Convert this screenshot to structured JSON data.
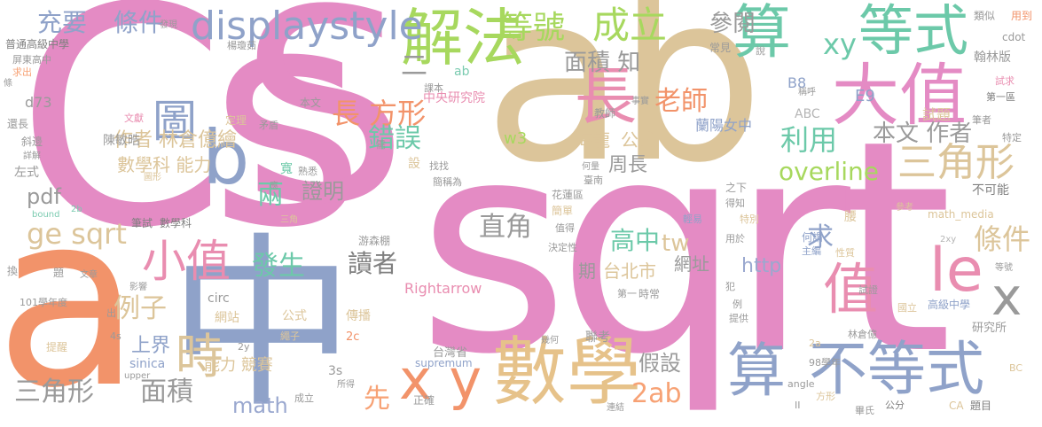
{
  "words": {
    "cs": "Cs",
    "a_big": "a",
    "S_big": "S",
    "ab_big": "ab",
    "sqrt_big": "sqrt",
    "zhong": "中",
    "jiefa": "解法",
    "dengshi": "等號",
    "chengli": "成立",
    "suan1": "算",
    "dengshi2": "等式",
    "displaystyle": "displaystyle",
    "chongyao": "充要",
    "tiaojian": "條件",
    "daizhi": "大值",
    "chang": "長",
    "chang_fangxing": "長 方形",
    "tu": "圖",
    "b": "b",
    "xiaozhi": "小值",
    "shi": "時",
    "xy_big": "x y",
    "shuxue": "數學",
    "suan2": "算",
    "budengshi": "不等式",
    "le": "le",
    "x_small": "x",
    "zhi": "值",
    "sanjiaoxing1": "三角形",
    "sanjiaoxing2": "三角形",
    "mianji": "面積",
    "mianji_zhi": "面積 知",
    "canyue": "參閱",
    "xy_small": "xy",
    "laoshi": "老師",
    "cuowu": "錯誤",
    "liyong": "利用",
    "benwen_zuozhe": "本文 作者",
    "overline": "overline",
    "ge_sqrt": "ge sqrt",
    "pdf": "pdf",
    "zhengming": "證明",
    "liang": "兩",
    "shuxueke_nengli": "數學科 能力",
    "zuozhe_lin": "作者 林倉億繪",
    "zhijiao": "直角",
    "gaozhong": "高中",
    "tw": "tw",
    "qiu": "求",
    "tiaojian2": "條件",
    "fasheng": "發生",
    "duzhe": "讀者",
    "lizi": "例子",
    "shangjie": "上界",
    "math": "math",
    "jingsai": "能力 競賽",
    "xian": "先",
    "twoab": "2ab",
    "jiashe": "假設",
    "zhouchang": "周長",
    "haelong": "海龍",
    "gongshi": "公式",
    "taibeishi": "台北市",
    "wangzhi": "網址",
    "http": "http",
    "qi": "期",
    "chenmin": "陳敏晧",
    "zhongyanyuan": "中央研究院",
    "w3": "w3",
    "b8": "B8",
    "e9": "E9",
    "abc": "ABC",
    "lanyang": "蘭陽女中",
    "shiti": "試題",
    "leisi": "類似",
    "yongdao": "用到",
    "cdot": "cdot",
    "hanlin": "翰林版",
    "faxian": "發現",
    "putong": "普通高級中學",
    "pingdong": "屏東高中",
    "qiuchu": "求出",
    "tiao": "條",
    "d73": "d73",
    "huanchang": "還長",
    "xiejing": "斜邊",
    "xiangjie": "詳解",
    "zuoshi": "左式",
    "bound": "bound",
    "twob": "2b",
    "bishi": "筆試",
    "shuxueke": "數學科",
    "rightarrow": "Rightarrow",
    "huan": "換",
    "ti": "題",
    "wenzhang": "文章",
    "yingxiang": "影響",
    "circ": "circ",
    "y101": "101學年度",
    "chu": "出",
    "wangzhan": "網站",
    "gongshi2": "公式",
    "chuanbo": "傳播",
    "shengzi": "繩子",
    "twoc": "2c",
    "fours": "4s",
    "twoy": "2y",
    "tixing": "提醒",
    "sinica": "sinica",
    "upper": "upper",
    "threes": "3s",
    "taiwansheng": "台灣省",
    "supremum": "supremum",
    "liankao": "聯考",
    "jihe": "幾何",
    "zhengque": "正確",
    "suode": "所得",
    "chengli2": "成立",
    "lian": "連結",
    "fangxing": "方形",
    "ii": "II",
    "bishi2": "畢氏",
    "gongfen": "公分",
    "ca": "CA",
    "timu": "題目",
    "bc": "BC",
    "jiaodu": "angle",
    "ninetyeight": "98學年",
    "twoa": "2a",
    "linzhang": "林倉億",
    "yanjiusuo": "研究所",
    "gaoji": "高級中學",
    "guoli": "國立",
    "shizheng": "試證",
    "tigong": "提供",
    "li": "例",
    "fan": "犯",
    "xingzhi": "性質",
    "zhujian": "主編",
    "hewei": "何謂",
    "dengshi3": "等號",
    "twoxy": "2xy",
    "yongyu": "用於",
    "qingyi": "輕易",
    "teibie": "特別",
    "yao": "腰",
    "buke": "不可能",
    "zhixia": "之下",
    "dezhi": "得知",
    "cankao": "參考",
    "mathmedia": "math_media",
    "ruo": "若",
    "shuo": "說",
    "changjian": "常見",
    "chenghu": "稱呼",
    "dier": "第一區",
    "shiqiu": "試求",
    "bizhe": "筆者",
    "tedding": "特定",
    "qing": "請",
    "hua": "話",
    "jiaoshi": "教師",
    "shishi": "事實",
    "ab_small": "ab",
    "keben": "課本",
    "duan": "段",
    "benwen": "本文",
    "wenxian": "文獻",
    "dingli": "定理",
    "maodun": "矛盾",
    "nan": "難",
    "xu": "需",
    "shezhi": "設",
    "zhaozhao": "找找",
    "kuan": "寬",
    "shuxi": "熟悉",
    "lei": "類",
    "ying": "應",
    "xiang": "相",
    "hualian": "花蓮區",
    "jiandan": "簡單",
    "jiancheng": "簡稱為",
    "ju": "句",
    "hebi": "何量",
    "tainan": "臺南",
    "xie": "寫",
    "zhi2": "值得",
    "jueding": "決定性",
    "liang2": "量",
    "qia": "恰",
    "diyi": "第一",
    "shichang": "時常",
    "youlin": "游森棚",
    "juan": "卷",
    "xing": "形",
    "du": "度",
    "chong": "充",
    "sanjiao": "三角",
    "tuxing": "圖形",
    "yangqiong": "楊瓊茹",
    "zheng": "正",
    "qi2": "期",
    "d": "二"
  }
}
